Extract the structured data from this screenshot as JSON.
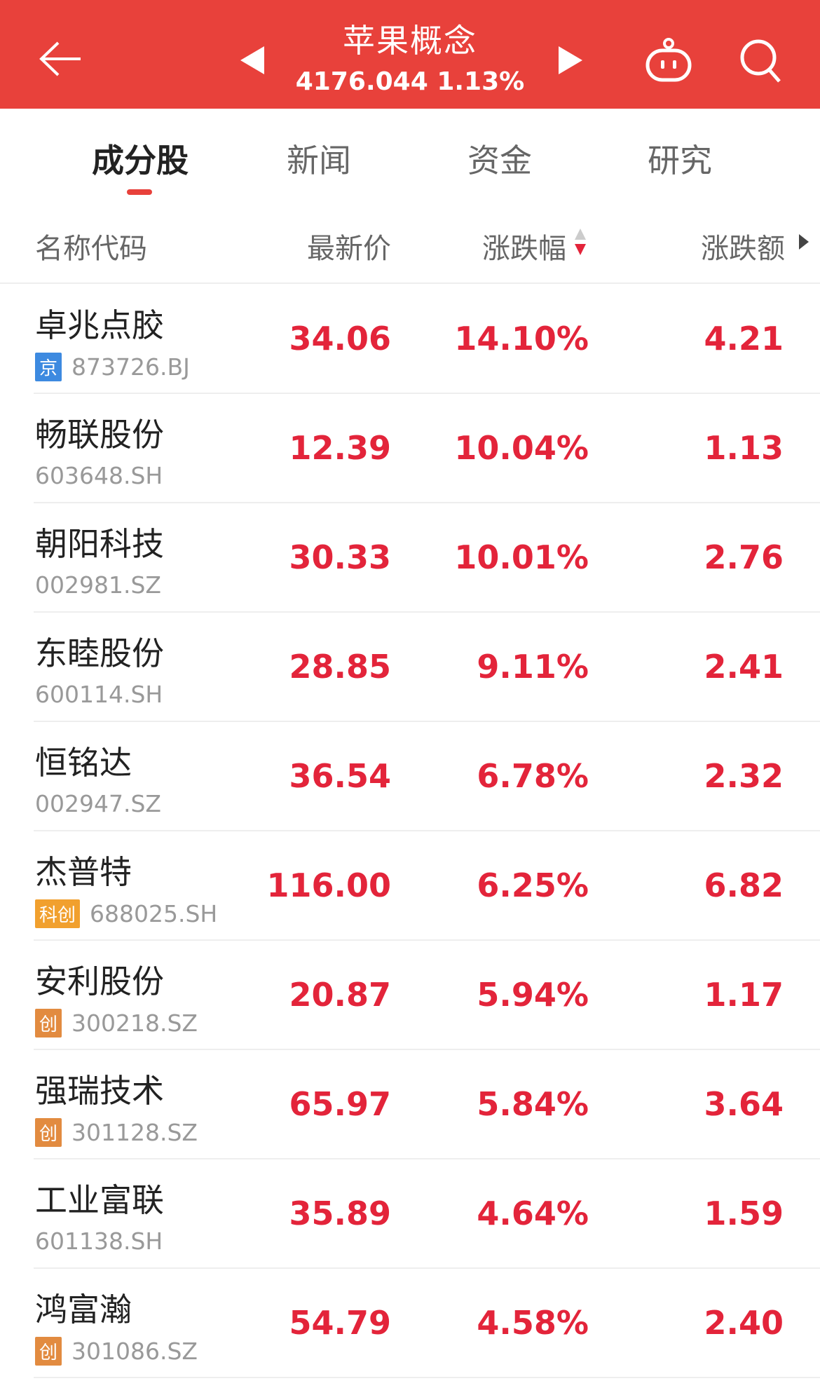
{
  "header": {
    "title": "苹果概念",
    "index_value": "4176.044",
    "index_change": "1.13%",
    "color": "#e8413b"
  },
  "tabs": [
    {
      "label": "成分股",
      "active": true
    },
    {
      "label": "新闻"
    },
    {
      "label": "资金"
    },
    {
      "label": "研究"
    }
  ],
  "columns": {
    "name": "名称代码",
    "price": "最新价",
    "change_pct": "涨跌幅",
    "change_amt": "涨跌额"
  },
  "rows": [
    {
      "name": "卓兆点胶",
      "code": "873726.BJ",
      "badge": "京",
      "badge_color": "#3d8ae0",
      "price": "34.06",
      "pct": "14.10%",
      "amt": "4.21"
    },
    {
      "name": "畅联股份",
      "code": "603648.SH",
      "badge": "",
      "price": "12.39",
      "pct": "10.04%",
      "amt": "1.13"
    },
    {
      "name": "朝阳科技",
      "code": "002981.SZ",
      "badge": "",
      "price": "30.33",
      "pct": "10.01%",
      "amt": "2.76"
    },
    {
      "name": "东睦股份",
      "code": "600114.SH",
      "badge": "",
      "price": "28.85",
      "pct": "9.11%",
      "amt": "2.41"
    },
    {
      "name": "恒铭达",
      "code": "002947.SZ",
      "badge": "",
      "price": "36.54",
      "pct": "6.78%",
      "amt": "2.32"
    },
    {
      "name": "杰普特",
      "code": "688025.SH",
      "badge": "科创",
      "badge_color": "#f1a02e",
      "price": "116.00",
      "pct": "6.25%",
      "amt": "6.82"
    },
    {
      "name": "安利股份",
      "code": "300218.SZ",
      "badge": "创",
      "badge_color": "#e28b40",
      "price": "20.87",
      "pct": "5.94%",
      "amt": "1.17"
    },
    {
      "name": "强瑞技术",
      "code": "301128.SZ",
      "badge": "创",
      "badge_color": "#e28b40",
      "price": "65.97",
      "pct": "5.84%",
      "amt": "3.64"
    },
    {
      "name": "工业富联",
      "code": "601138.SH",
      "badge": "",
      "price": "35.89",
      "pct": "4.64%",
      "amt": "1.59"
    },
    {
      "name": "鸿富瀚",
      "code": "301086.SZ",
      "badge": "创",
      "badge_color": "#e28b40",
      "price": "54.79",
      "pct": "4.58%",
      "amt": "2.40"
    }
  ]
}
